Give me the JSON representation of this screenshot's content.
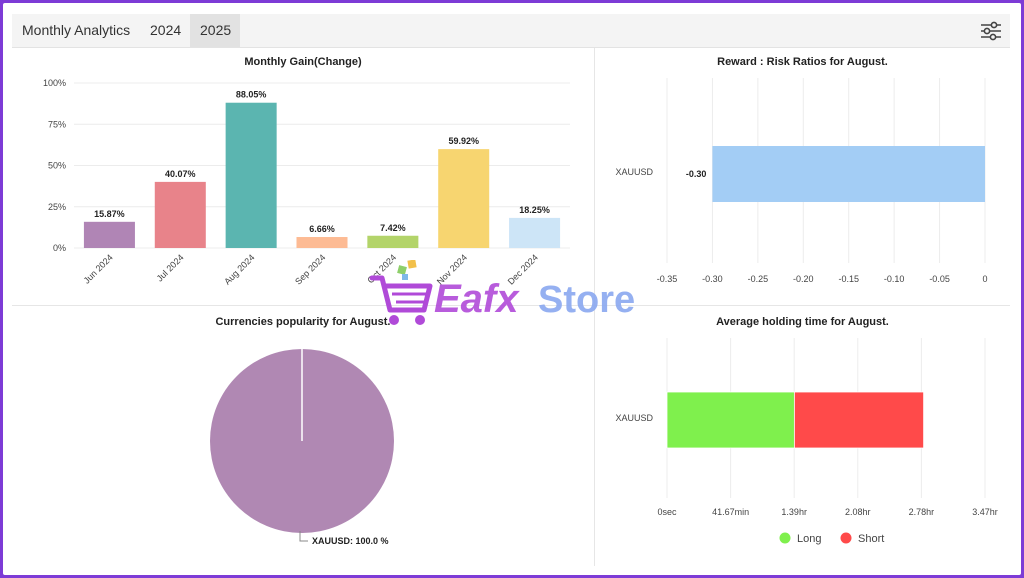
{
  "header": {
    "title": "Monthly Analytics",
    "tabs": [
      {
        "label": "2024",
        "active": false
      },
      {
        "label": "2025",
        "active": true
      }
    ],
    "settings_icon": "sliders-icon"
  },
  "chart_data": [
    {
      "id": "monthly-gain",
      "type": "bar",
      "title": "Monthly Gain(Change)",
      "categories": [
        "Jun 2024",
        "Jul 2024",
        "Aug 2024",
        "Sep 2024",
        "Oct 2024",
        "Nov 2024",
        "Dec 2024"
      ],
      "values": [
        15.87,
        40.07,
        88.05,
        6.66,
        7.42,
        59.92,
        18.25
      ],
      "data_labels": [
        "15.87%",
        "40.07%",
        "88.05%",
        "6.66%",
        "7.42%",
        "59.92%",
        "18.25%"
      ],
      "colors": [
        "#b085b5",
        "#e8838a",
        "#5bb5b0",
        "#fdbb94",
        "#b3d46a",
        "#f7d570",
        "#cde5f7"
      ],
      "yticks": [
        "0%",
        "25%",
        "50%",
        "75%",
        "100%"
      ],
      "ylim": [
        0,
        100
      ],
      "grid": true
    },
    {
      "id": "reward-risk",
      "type": "bar",
      "orientation": "horizontal",
      "title": "Reward : Risk Ratios for August.",
      "categories": [
        "XAUUSD"
      ],
      "values": [
        -0.3
      ],
      "data_labels": [
        "-0.30"
      ],
      "color": "#a3cdf5",
      "xticks": [
        "-0.35",
        "-0.30",
        "-0.25",
        "-0.20",
        "-0.15",
        "-0.10",
        "-0.05",
        "0"
      ],
      "xlim": [
        -0.35,
        0
      ],
      "grid": true
    },
    {
      "id": "currency-popularity",
      "type": "pie",
      "title": "Currencies popularity for August.",
      "slices": [
        {
          "label": "XAUUSD",
          "value": 100.0,
          "color": "#b088b3"
        }
      ],
      "data_labels": [
        "XAUUSD: 100.0 %"
      ]
    },
    {
      "id": "holding-time",
      "type": "bar",
      "orientation": "horizontal",
      "stacked": true,
      "title": "Average holding time for August.",
      "categories": [
        "XAUUSD"
      ],
      "xticks": [
        "0sec",
        "41.67min",
        "1.39hr",
        "2.08hr",
        "2.78hr",
        "3.47hr"
      ],
      "xlim_hours": [
        0,
        3.47
      ],
      "series": [
        {
          "name": "Long",
          "values": [
            1.39
          ],
          "color": "#7ff04d"
        },
        {
          "name": "Short",
          "values": [
            1.41
          ],
          "color": "#ff4a4a"
        }
      ],
      "legend": "bottom",
      "grid": true
    }
  ],
  "watermark": {
    "text_a": "Eafx",
    "text_b": "Store"
  }
}
